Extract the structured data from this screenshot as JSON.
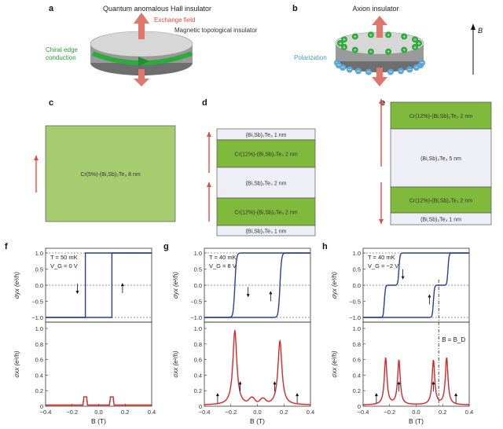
{
  "panels": {
    "a": {
      "letter": "a",
      "title": "Quantum anomalous Hall insulator",
      "exchange": "Exchange field",
      "mti": "Magnetic topological insulator",
      "chiral1": "Chiral edge",
      "chiral2": "conduction"
    },
    "b": {
      "letter": "b",
      "title": "Axion insulator",
      "polarization": "Polarization",
      "field": "B"
    },
    "c": {
      "letter": "c",
      "layers": [
        {
          "label": "Cr(5%)-(Bi,Sb)₂Te₃ 8 nm",
          "color": "#a6cc70"
        }
      ]
    },
    "d": {
      "letter": "d",
      "layers": [
        {
          "label": "(Bi,Sb)₂Te₃ 1 nm",
          "color": "#eeeef7"
        },
        {
          "label": "Cr(12%)-(Bi,Sb)₂Te₃ 2 nm",
          "color": "#7fba3c"
        },
        {
          "label": "(Bi,Sb)₂Te₃ 2 nm",
          "color": "#eeeef7"
        },
        {
          "label": "Cr(12%)-(Bi,Sb)₂Te₃ 2 nm",
          "color": "#7fba3c"
        },
        {
          "label": "(Bi,Sb)₂Te₃ 1 nm",
          "color": "#eeeef7"
        }
      ]
    },
    "e": {
      "letter": "e",
      "layers": [
        {
          "label": "Cr(12%)-(Bi,Sb)₂Te₃ 2 nm",
          "color": "#7fba3c"
        },
        {
          "label": "(Bi,Sb)₂Te₃ 5 nm",
          "color": "#eeeef7"
        },
        {
          "label": "Cr(12%)-(Bi,Sb)₂Te₃ 2 nm",
          "color": "#7fba3c"
        },
        {
          "label": "(Bi,Sb)₂Te₃ 1 nm",
          "color": "#eeeef7"
        }
      ]
    }
  },
  "chart_data": [
    {
      "panel": "f",
      "type": "line",
      "T": "T = 50 mK",
      "VG": "V_G = 0 V",
      "ylabel_top": "σyx (e²/h)",
      "ylabel_bottom": "σxx (e²/h)",
      "xlabel": "B (T)",
      "xlim": [
        -0.4,
        0.4
      ],
      "ylim_top": [
        -1.0,
        1.0
      ],
      "ylim_bottom": [
        0,
        1.0
      ],
      "coercive_field": 0.1,
      "peak_height": 0.12,
      "peak_width": 0.012
    },
    {
      "panel": "g",
      "type": "line",
      "T": "T = 40 mK",
      "VG": "V_G = 8 V",
      "ylabel_top": "σyx (e²/h)",
      "ylabel_bottom": "σxx (e²/h)",
      "xlabel": "B (T)",
      "xlim": [
        -0.4,
        0.4
      ],
      "ylim_top": [
        -1.0,
        1.0
      ],
      "ylim_bottom": [
        0,
        1.0
      ],
      "coercive_field": 0.17,
      "peaks": [
        {
          "x": -0.17,
          "h": 0.95
        },
        {
          "x": 0.17,
          "h": 0.82
        }
      ]
    },
    {
      "panel": "h",
      "type": "line",
      "T": "T = 40 mK",
      "VG": "V_G = −2 V",
      "ylabel_top": "σyx (e²/h)",
      "ylabel_bottom": "σxx (e²/h)",
      "xlabel": "B (T)",
      "xlim": [
        -0.4,
        0.4
      ],
      "ylim_top": [
        -1.0,
        1.0
      ],
      "ylim_bottom": [
        0,
        1.0
      ],
      "steps": [
        0.13,
        0.24
      ],
      "annotation": "B = B_D",
      "peaks": [
        {
          "x": -0.23,
          "h": 0.6
        },
        {
          "x": -0.13,
          "h": 0.57
        },
        {
          "x": 0.13,
          "h": 0.57
        },
        {
          "x": 0.23,
          "h": 0.6
        }
      ]
    }
  ],
  "axis_ticks": {
    "x": [
      "−0.4",
      "−0.2",
      "0.0",
      "0.2",
      "0.4"
    ],
    "y_top": [
      "1.0",
      "0.5",
      "0.0",
      "−0.5",
      "−1.0"
    ],
    "y_bottom": [
      "1.0",
      "0.8",
      "0.6",
      "0.4",
      "0.2",
      "0"
    ]
  },
  "colors": {
    "hall": "#2b3f8f",
    "long": "#d62728",
    "arrow": "#e14a4a",
    "green": "#2cab3a",
    "blue": "#5ba7d6"
  }
}
